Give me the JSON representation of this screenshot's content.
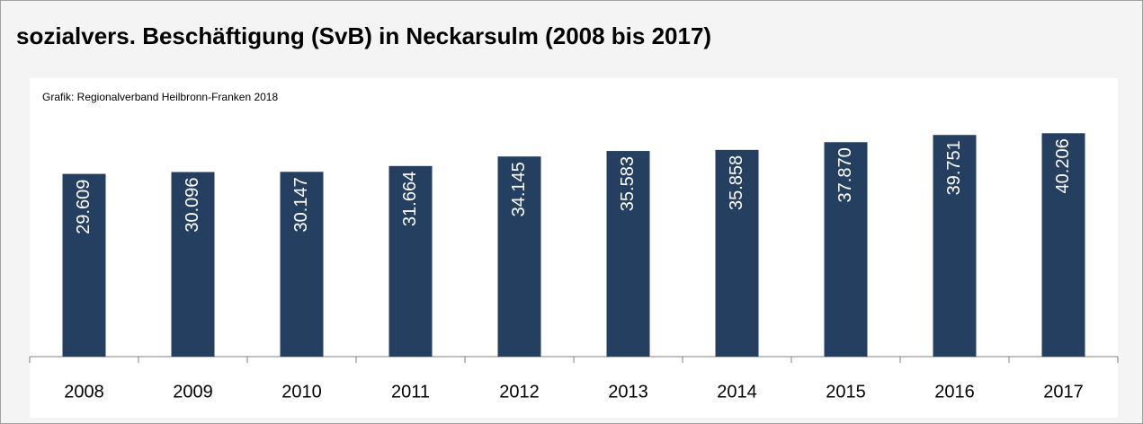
{
  "chart_data": {
    "type": "bar",
    "title": "sozialvers. Beschäftigung (SvB) in Neckarsulm (2008 bis 2017)",
    "subtitle": "Grafik: Regionalverband Heilbronn-Franken 2018",
    "categories": [
      "2008",
      "2009",
      "2010",
      "2011",
      "2012",
      "2013",
      "2014",
      "2015",
      "2016",
      "2017"
    ],
    "values": [
      29609,
      30096,
      30147,
      31664,
      34145,
      35583,
      35858,
      37870,
      39751,
      40206
    ],
    "value_labels": [
      "29.609",
      "30.096",
      "30.147",
      "31.664",
      "34.145",
      "35.583",
      "35.858",
      "37.870",
      "39.751",
      "40.206"
    ],
    "color": "#243f60",
    "ylim": [
      -18000,
      48000
    ]
  }
}
